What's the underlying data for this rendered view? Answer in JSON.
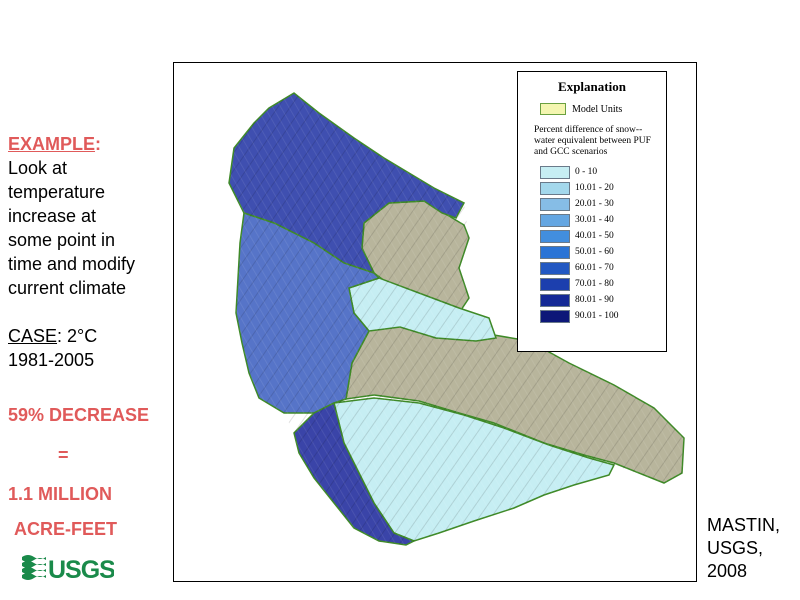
{
  "left": {
    "example_label": "EXAMPLE",
    "example_colon": ":",
    "example_text": "Look at\ntemperature\nincrease at\nsome point in\ntime and modify\ncurrent climate",
    "case_label": "CASE",
    "case_value": ": 2°C",
    "case_period": "1981-2005",
    "decrease": "59% DECREASE",
    "equals": "=",
    "volume_line1": "1.1 MILLION",
    "volume_line2": "ACRE-FEET"
  },
  "logo": {
    "text": "USGS",
    "icon": "usgs-wave-icon",
    "color": "#1a8a4a"
  },
  "credit": "MASTIN,\nUSGS,\n2008",
  "legend": {
    "title": "Explanation",
    "model_units_label": "Model Units",
    "description": "Percent difference of snow--water equivalent between PUF and GCC scenarios",
    "classes": [
      {
        "label": "0 - 10",
        "color": "#c6eef3"
      },
      {
        "label": "10.01 - 20",
        "color": "#a4d8ec"
      },
      {
        "label": "20.01 - 30",
        "color": "#86bde6"
      },
      {
        "label": "30.01 - 40",
        "color": "#64a6e2"
      },
      {
        "label": "40.01 - 50",
        "color": "#428ede"
      },
      {
        "label": "50.01 - 60",
        "color": "#2a74d6"
      },
      {
        "label": "60.01 - 70",
        "color": "#2258c2"
      },
      {
        "label": "70.01 - 80",
        "color": "#1c3fae"
      },
      {
        "label": "80.01 - 90",
        "color": "#152a96"
      },
      {
        "label": "90.01 - 100",
        "color": "#0c1778"
      }
    ]
  },
  "map_colors": {
    "north_unit": "#3f4fb0",
    "central_unit": "#5674c8",
    "south_west_unit": "#3a44a8",
    "light_units": "#c6eef3",
    "terrain": "#b8b59c",
    "boundary": "#3f8a28"
  }
}
